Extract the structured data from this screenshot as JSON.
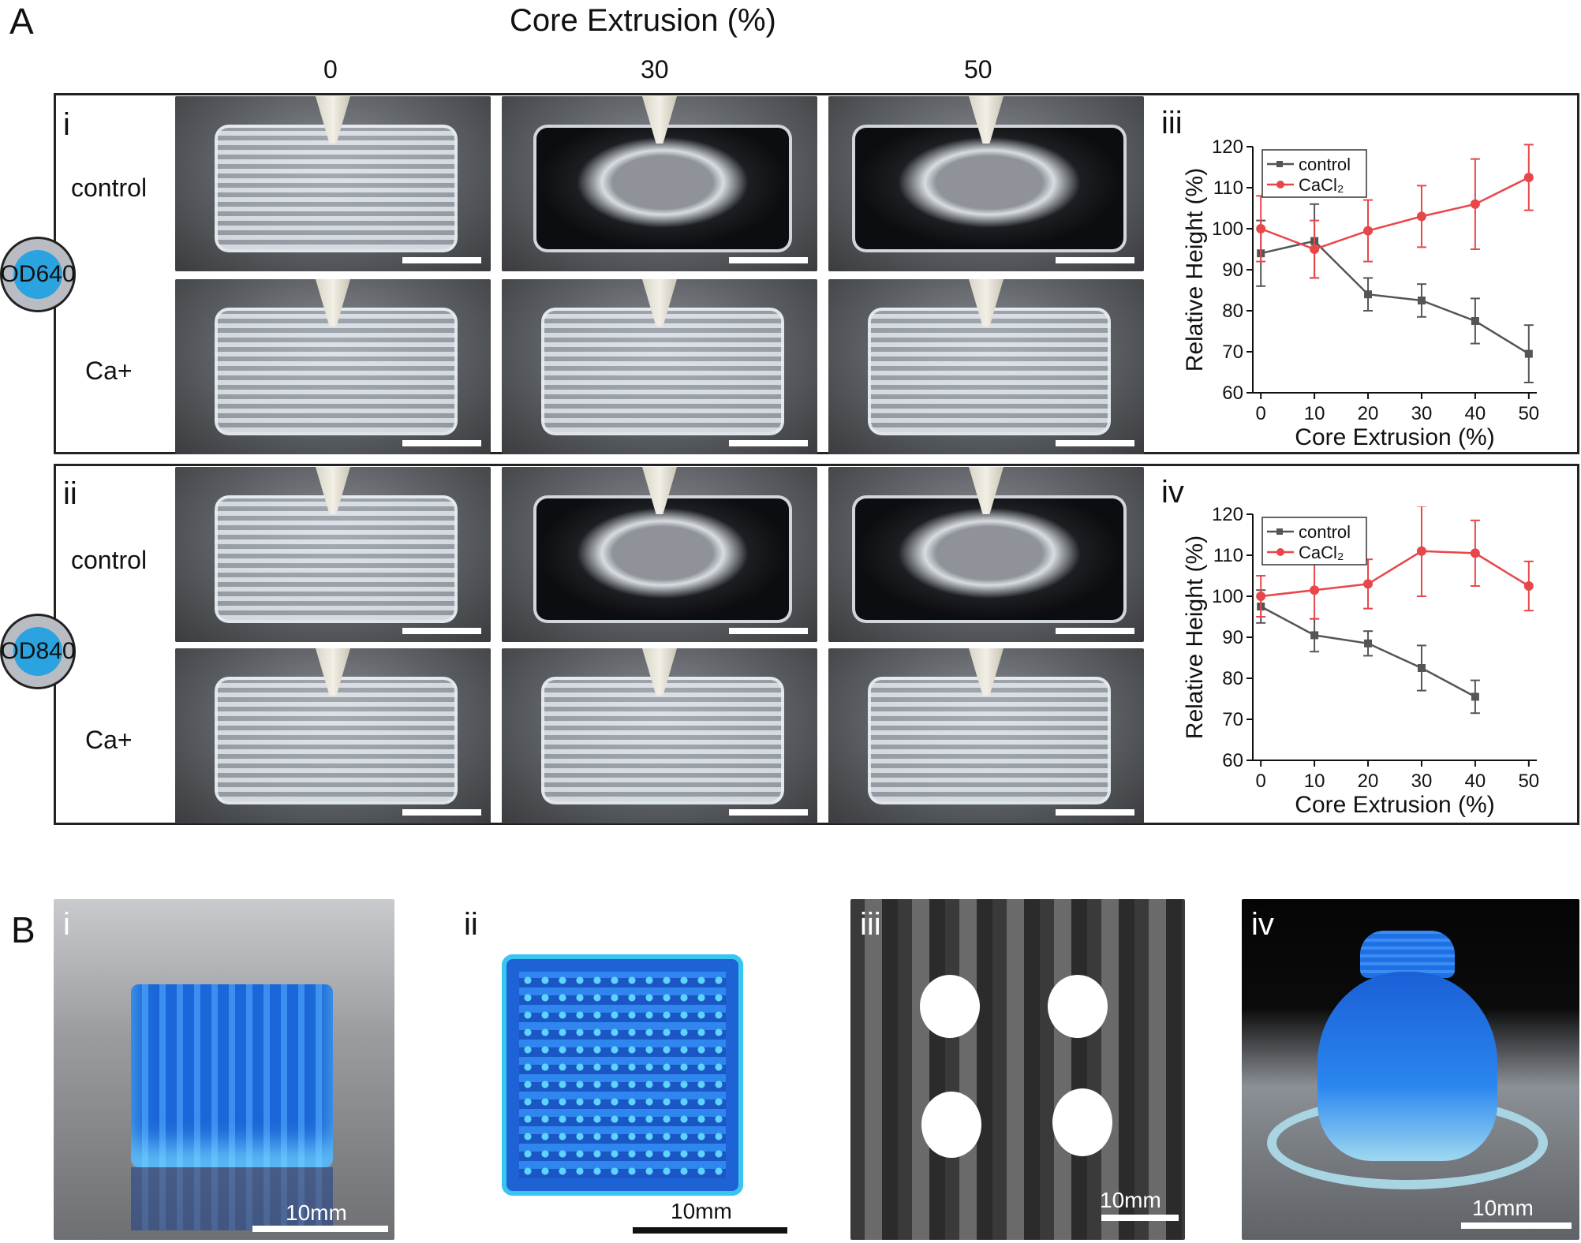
{
  "panel_A": {
    "letter": "A",
    "header": "Core Extrusion (%)",
    "columns": [
      "0",
      "30",
      "50"
    ],
    "sub_i": "i",
    "sub_ii": "ii",
    "sub_iii": "iii",
    "sub_iv": "iv",
    "row_control": "control",
    "row_ca": "Ca+",
    "badge_top": "OD640",
    "badge_bottom": "OD840"
  },
  "panel_B": {
    "letter": "B",
    "labels": [
      "i",
      "ii",
      "iii",
      "iv"
    ],
    "scale_label": "10mm"
  },
  "colors": {
    "control": "#555555",
    "cacl2": "#e8474a",
    "badge_fill": "#2ba3e0",
    "badge_ring": "#b9bcc2",
    "hydrogel_blue": "#1f6fe0"
  },
  "chart_data": [
    {
      "id": "iii",
      "type": "line",
      "xlabel": "Core Extrusion (%)",
      "ylabel": "Relative Height (%)",
      "xlim": [
        0,
        50
      ],
      "ylim": [
        60,
        120
      ],
      "xticks": [
        0,
        10,
        20,
        30,
        40,
        50
      ],
      "yticks": [
        60,
        70,
        80,
        90,
        100,
        110,
        120
      ],
      "legend": "top-left",
      "series": [
        {
          "name": "control",
          "color": "#555555",
          "marker": "square",
          "x": [
            0,
            10,
            20,
            30,
            40,
            50
          ],
          "y": [
            94,
            97,
            84,
            82.5,
            77.5,
            69.5
          ],
          "err": [
            8,
            9,
            4,
            4,
            5.5,
            7
          ]
        },
        {
          "name": "CaCl₂",
          "color": "#e8474a",
          "marker": "circle",
          "x": [
            0,
            10,
            20,
            30,
            40,
            50
          ],
          "y": [
            100,
            95,
            99.5,
            103,
            106,
            112.5
          ],
          "err": [
            8,
            7,
            7.5,
            7.5,
            11,
            8
          ]
        }
      ]
    },
    {
      "id": "iv",
      "type": "line",
      "xlabel": "Core Extrusion (%)",
      "ylabel": "Relative Height (%)",
      "xlim": [
        0,
        50
      ],
      "ylim": [
        60,
        120
      ],
      "xticks": [
        0,
        10,
        20,
        30,
        40,
        50
      ],
      "yticks": [
        60,
        70,
        80,
        90,
        100,
        110,
        120
      ],
      "legend": "top-left",
      "series": [
        {
          "name": "control",
          "color": "#555555",
          "marker": "square",
          "x": [
            0,
            10,
            20,
            30,
            40
          ],
          "y": [
            97.5,
            90.5,
            88.5,
            82.5,
            75.5
          ],
          "err": [
            4,
            4,
            3,
            5.5,
            4
          ]
        },
        {
          "name": "CaCl₂",
          "color": "#e8474a",
          "marker": "circle",
          "x": [
            0,
            10,
            20,
            30,
            40,
            50
          ],
          "y": [
            100,
            101.5,
            103,
            111,
            110.5,
            102.5
          ],
          "err": [
            5,
            7,
            6,
            11,
            8,
            6
          ]
        }
      ]
    }
  ]
}
